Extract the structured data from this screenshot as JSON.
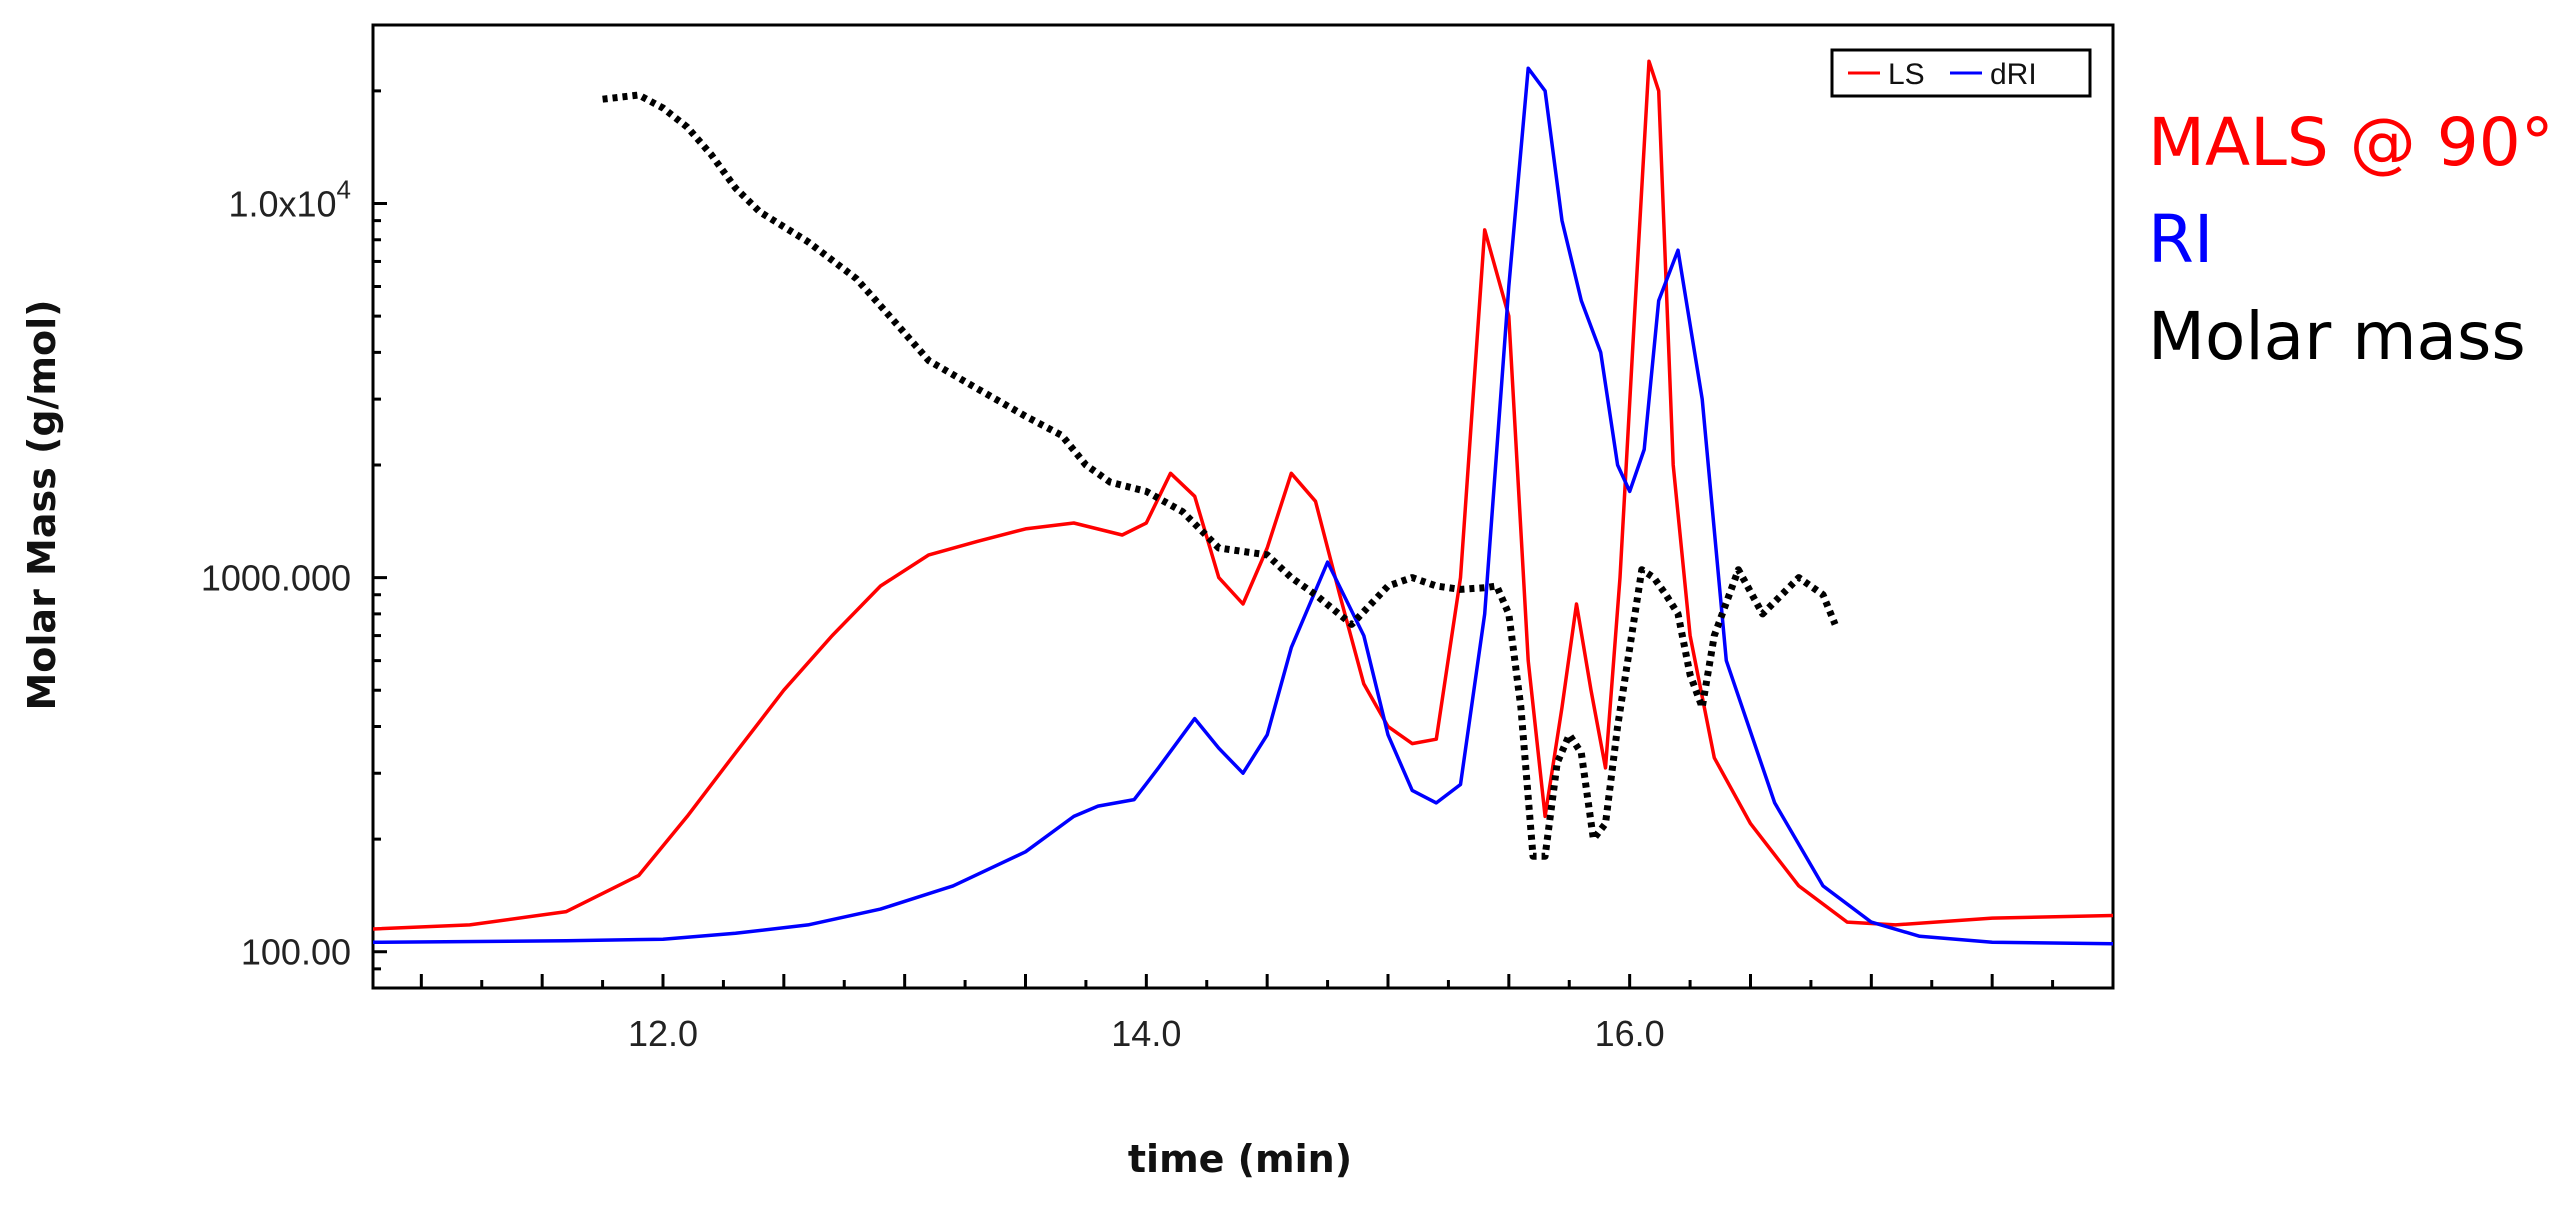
{
  "chart_data": {
    "type": "line",
    "title": "",
    "xlabel": "time (min)",
    "ylabel": "Molar Mass (g/mol)",
    "xlim": [
      10.8,
      18.0
    ],
    "ylim": [
      80,
      30000
    ],
    "yscale": "log",
    "x_ticks": [
      {
        "value": 12.0,
        "label": "12.0"
      },
      {
        "value": 14.0,
        "label": "14.0"
      },
      {
        "value": 16.0,
        "label": "16.0"
      }
    ],
    "y_ticks": [
      {
        "value": 100,
        "label_main": "100.00",
        "label_sup": ""
      },
      {
        "value": 1000,
        "label_main": "1000.000",
        "label_sup": ""
      },
      {
        "value": 10000,
        "label_main": "1.0x10",
        "label_sup": "4"
      }
    ],
    "series": [
      {
        "name": "LS",
        "color": "#ff0000",
        "style": "line",
        "x": [
          10.8,
          11.2,
          11.6,
          11.9,
          12.1,
          12.3,
          12.5,
          12.7,
          12.9,
          13.1,
          13.3,
          13.5,
          13.7,
          13.9,
          14.0,
          14.1,
          14.2,
          14.3,
          14.4,
          14.5,
          14.6,
          14.7,
          14.8,
          14.9,
          15.0,
          15.1,
          15.2,
          15.3,
          15.4,
          15.5,
          15.58,
          15.65,
          15.72,
          15.78,
          15.84,
          15.9,
          15.96,
          16.02,
          16.08,
          16.12,
          16.18,
          16.25,
          16.35,
          16.5,
          16.7,
          16.9,
          17.1,
          17.5,
          18.0
        ],
        "values": [
          115,
          118,
          128,
          160,
          230,
          340,
          500,
          700,
          950,
          1150,
          1250,
          1350,
          1400,
          1300,
          1400,
          1900,
          1650,
          1000,
          850,
          1200,
          1900,
          1600,
          900,
          520,
          400,
          360,
          370,
          1000,
          8500,
          5000,
          600,
          230,
          450,
          850,
          500,
          310,
          1000,
          5000,
          24000,
          20000,
          2000,
          700,
          330,
          220,
          150,
          120,
          118,
          123,
          125
        ]
      },
      {
        "name": "dRI",
        "color": "#0000ff",
        "style": "line",
        "x": [
          10.8,
          11.6,
          12.0,
          12.3,
          12.6,
          12.9,
          13.2,
          13.5,
          13.7,
          13.8,
          13.95,
          14.05,
          14.2,
          14.3,
          14.4,
          14.5,
          14.6,
          14.75,
          14.9,
          15.0,
          15.1,
          15.2,
          15.3,
          15.4,
          15.5,
          15.58,
          15.65,
          15.72,
          15.8,
          15.88,
          15.95,
          16.0,
          16.06,
          16.12,
          16.2,
          16.3,
          16.4,
          16.6,
          16.8,
          17.0,
          17.2,
          17.5,
          18.0
        ],
        "values": [
          106,
          107,
          108,
          112,
          118,
          130,
          150,
          185,
          230,
          245,
          255,
          310,
          420,
          350,
          300,
          380,
          650,
          1100,
          700,
          380,
          270,
          250,
          280,
          800,
          6000,
          23000,
          20000,
          9000,
          5500,
          4000,
          2000,
          1700,
          2200,
          5500,
          7500,
          3000,
          600,
          250,
          150,
          120,
          110,
          106,
          105
        ]
      },
      {
        "name": "Molar mass",
        "color": "#000000",
        "style": "dotted",
        "x": [
          11.75,
          11.9,
          12.0,
          12.1,
          12.2,
          12.3,
          12.4,
          12.6,
          12.8,
          12.95,
          13.1,
          13.3,
          13.5,
          13.65,
          13.75,
          13.85,
          14.0,
          14.15,
          14.3,
          14.5,
          14.6,
          14.7,
          14.85,
          15.0,
          15.1,
          15.2,
          15.3,
          15.4,
          15.45,
          15.5,
          15.55,
          15.6,
          15.65,
          15.7,
          15.75,
          15.8,
          15.85,
          15.9,
          15.95,
          16.05,
          16.1,
          16.15,
          16.2,
          16.25,
          16.3,
          16.35,
          16.45,
          16.55,
          16.7,
          16.8,
          16.85
        ],
        "values": [
          19000,
          19500,
          18000,
          16000,
          13500,
          11000,
          9500,
          7900,
          6300,
          4900,
          3800,
          3200,
          2700,
          2400,
          2000,
          1800,
          1700,
          1500,
          1200,
          1150,
          1000,
          900,
          750,
          950,
          1000,
          950,
          930,
          940,
          950,
          800,
          450,
          180,
          180,
          320,
          380,
          340,
          200,
          220,
          400,
          1050,
          1000,
          900,
          800,
          550,
          450,
          700,
          1050,
          800,
          1000,
          900,
          750
        ]
      }
    ],
    "legend": {
      "position": "top-right",
      "entries": [
        "LS",
        "dRI"
      ]
    },
    "side_legend": [
      {
        "text": "MALS @ 90°",
        "color": "#ff0000"
      },
      {
        "text": "RI",
        "color": "#0000ff"
      },
      {
        "text": "Molar mass",
        "color": "#000000"
      }
    ]
  }
}
